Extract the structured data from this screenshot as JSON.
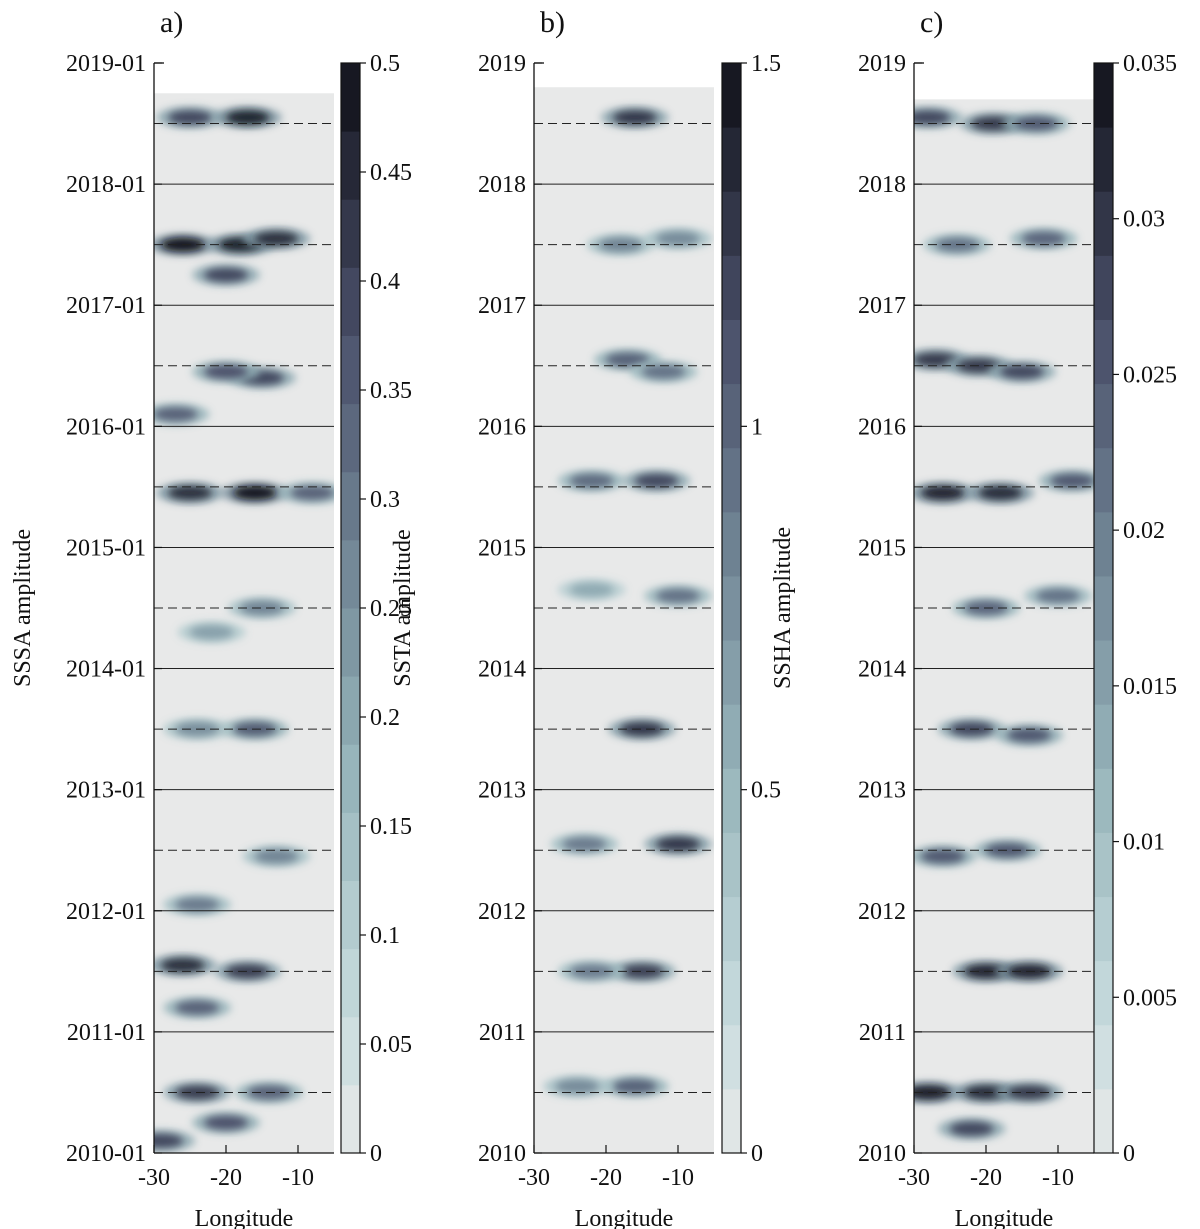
{
  "chart_data": [
    {
      "type": "heatmap",
      "panel_label": "a)",
      "ylabel": "SSSA amplitude",
      "xlabel": "Longitude",
      "xlim": [
        -30,
        -5
      ],
      "ylim": [
        "2010-01",
        "2019-01"
      ],
      "data_end": "2018-10",
      "xticks": [
        -30,
        -20,
        -10
      ],
      "yticks": [
        "2010-01",
        "2011-01",
        "2012-01",
        "2013-01",
        "2014-01",
        "2015-01",
        "2016-01",
        "2017-01",
        "2018-01",
        "2019-01"
      ],
      "year_lines": [
        "2011-01",
        "2012-01",
        "2013-01",
        "2014-01",
        "2015-01",
        "2016-01",
        "2017-01",
        "2018-01"
      ],
      "midyear_dashed_lines": [
        "2010-07",
        "2011-07",
        "2012-07",
        "2013-07",
        "2014-07",
        "2015-07",
        "2016-07",
        "2017-07",
        "2018-07"
      ],
      "colorbar": {
        "min": 0,
        "max": 0.5,
        "ticks": [
          0,
          0.05,
          0.1,
          0.15,
          0.2,
          0.25,
          0.3,
          0.35,
          0.4,
          0.45,
          0.5
        ],
        "tick_labels": [
          "0",
          "0.05",
          "0.1",
          "0.15",
          "0.2",
          "0.25",
          "0.3",
          "0.35",
          "0.4",
          "0.45",
          "0.5"
        ],
        "levels": 16
      },
      "blobs": [
        {
          "x": -25,
          "y": 2018.55,
          "value": 0.4
        },
        {
          "x": -17,
          "y": 2018.55,
          "value": 0.48
        },
        {
          "x": -26,
          "y": 2017.5,
          "value": 0.5
        },
        {
          "x": -18,
          "y": 2017.5,
          "value": 0.48
        },
        {
          "x": -13,
          "y": 2017.55,
          "value": 0.45
        },
        {
          "x": -20,
          "y": 2017.25,
          "value": 0.4
        },
        {
          "x": -15,
          "y": 2016.4,
          "value": 0.4
        },
        {
          "x": -20,
          "y": 2016.45,
          "value": 0.38
        },
        {
          "x": -27,
          "y": 2016.1,
          "value": 0.35
        },
        {
          "x": -25,
          "y": 2015.45,
          "value": 0.45
        },
        {
          "x": -16,
          "y": 2015.45,
          "value": 0.5
        },
        {
          "x": -8,
          "y": 2015.45,
          "value": 0.35
        },
        {
          "x": -15,
          "y": 2014.5,
          "value": 0.28
        },
        {
          "x": -22,
          "y": 2014.3,
          "value": 0.22
        },
        {
          "x": -16,
          "y": 2013.5,
          "value": 0.36
        },
        {
          "x": -24,
          "y": 2013.5,
          "value": 0.26
        },
        {
          "x": -13,
          "y": 2012.45,
          "value": 0.28
        },
        {
          "x": -24,
          "y": 2012.05,
          "value": 0.3
        },
        {
          "x": -26,
          "y": 2011.55,
          "value": 0.45
        },
        {
          "x": -17,
          "y": 2011.5,
          "value": 0.42
        },
        {
          "x": -24,
          "y": 2011.2,
          "value": 0.35
        },
        {
          "x": -24,
          "y": 2010.5,
          "value": 0.42
        },
        {
          "x": -14,
          "y": 2010.5,
          "value": 0.35
        },
        {
          "x": -20,
          "y": 2010.25,
          "value": 0.38
        },
        {
          "x": -29,
          "y": 2010.1,
          "value": 0.4
        }
      ]
    },
    {
      "type": "heatmap",
      "panel_label": "b)",
      "ylabel": "SSTA amplitude",
      "xlabel": "Longitude",
      "xlim": [
        -30,
        -5
      ],
      "ylim": [
        2010,
        2019
      ],
      "data_end": 2018.8,
      "xticks": [
        -30,
        -20,
        -10
      ],
      "yticks": [
        "2010",
        "2011",
        "2012",
        "2013",
        "2014",
        "2015",
        "2016",
        "2017",
        "2018",
        "2019"
      ],
      "year_lines": [
        2011,
        2012,
        2013,
        2014,
        2015,
        2016,
        2017,
        2018
      ],
      "midyear_dashed_lines": [
        2010.5,
        2011.5,
        2012.5,
        2013.5,
        2014.5,
        2015.5,
        2016.5,
        2017.5,
        2018.5
      ],
      "colorbar": {
        "min": 0,
        "max": 1.5,
        "ticks": [
          0,
          0.5,
          1,
          1.5
        ],
        "tick_labels": [
          "0",
          "0.5",
          "1",
          "1.5"
        ],
        "levels": 17
      },
      "blobs": [
        {
          "x": -16,
          "y": 2018.55,
          "value": 1.3
        },
        {
          "x": -18,
          "y": 2017.5,
          "value": 0.85
        },
        {
          "x": -10,
          "y": 2017.55,
          "value": 0.8
        },
        {
          "x": -17,
          "y": 2016.55,
          "value": 1.05
        },
        {
          "x": -12,
          "y": 2016.45,
          "value": 0.95
        },
        {
          "x": -22,
          "y": 2015.55,
          "value": 1.0
        },
        {
          "x": -13,
          "y": 2015.55,
          "value": 1.2
        },
        {
          "x": -10,
          "y": 2014.6,
          "value": 0.95
        },
        {
          "x": -22,
          "y": 2014.65,
          "value": 0.6
        },
        {
          "x": -15,
          "y": 2013.5,
          "value": 1.3
        },
        {
          "x": -10,
          "y": 2012.55,
          "value": 1.3
        },
        {
          "x": -23,
          "y": 2012.55,
          "value": 0.9
        },
        {
          "x": -15,
          "y": 2011.5,
          "value": 1.25
        },
        {
          "x": -22,
          "y": 2011.5,
          "value": 0.9
        },
        {
          "x": -16,
          "y": 2010.55,
          "value": 1.05
        },
        {
          "x": -24,
          "y": 2010.55,
          "value": 0.8
        }
      ]
    },
    {
      "type": "heatmap",
      "panel_label": "c)",
      "ylabel": "SSHA amplitude",
      "xlabel": "Longitude",
      "xlim": [
        -30,
        -5
      ],
      "ylim": [
        2010,
        2019
      ],
      "data_end": 2018.7,
      "xticks": [
        -30,
        -20,
        -10
      ],
      "yticks": [
        "2010",
        "2011",
        "2012",
        "2013",
        "2014",
        "2015",
        "2016",
        "2017",
        "2018",
        "2019"
      ],
      "year_lines": [
        2011,
        2012,
        2013,
        2014,
        2015,
        2016,
        2017,
        2018
      ],
      "midyear_dashed_lines": [
        2010.5,
        2011.5,
        2012.5,
        2013.5,
        2014.5,
        2015.5,
        2016.5,
        2017.5,
        2018.5
      ],
      "colorbar": {
        "min": 0,
        "max": 0.035,
        "ticks": [
          0,
          0.005,
          0.01,
          0.015,
          0.02,
          0.025,
          0.03,
          0.035
        ],
        "tick_labels": [
          "0",
          "0.005",
          "0.01",
          "0.015",
          "0.02",
          "0.025",
          "0.03",
          "0.035"
        ],
        "levels": 17
      },
      "blobs": [
        {
          "x": -28,
          "y": 2018.55,
          "value": 0.028
        },
        {
          "x": -19,
          "y": 2018.5,
          "value": 0.03
        },
        {
          "x": -13,
          "y": 2018.5,
          "value": 0.026
        },
        {
          "x": -24,
          "y": 2017.5,
          "value": 0.022
        },
        {
          "x": -12,
          "y": 2017.55,
          "value": 0.024
        },
        {
          "x": -27,
          "y": 2016.55,
          "value": 0.03
        },
        {
          "x": -21,
          "y": 2016.5,
          "value": 0.03
        },
        {
          "x": -15,
          "y": 2016.45,
          "value": 0.028
        },
        {
          "x": -26,
          "y": 2015.45,
          "value": 0.033
        },
        {
          "x": -18,
          "y": 2015.45,
          "value": 0.032
        },
        {
          "x": -8,
          "y": 2015.55,
          "value": 0.026
        },
        {
          "x": -20,
          "y": 2014.5,
          "value": 0.024
        },
        {
          "x": -10,
          "y": 2014.6,
          "value": 0.022
        },
        {
          "x": -22,
          "y": 2013.5,
          "value": 0.028
        },
        {
          "x": -14,
          "y": 2013.45,
          "value": 0.026
        },
        {
          "x": -26,
          "y": 2012.45,
          "value": 0.026
        },
        {
          "x": -17,
          "y": 2012.5,
          "value": 0.026
        },
        {
          "x": -20,
          "y": 2011.5,
          "value": 0.033
        },
        {
          "x": -14,
          "y": 2011.5,
          "value": 0.033
        },
        {
          "x": -28,
          "y": 2010.5,
          "value": 0.034
        },
        {
          "x": -20,
          "y": 2010.5,
          "value": 0.032
        },
        {
          "x": -14,
          "y": 2010.5,
          "value": 0.03
        },
        {
          "x": -22,
          "y": 2010.2,
          "value": 0.028
        }
      ]
    }
  ]
}
